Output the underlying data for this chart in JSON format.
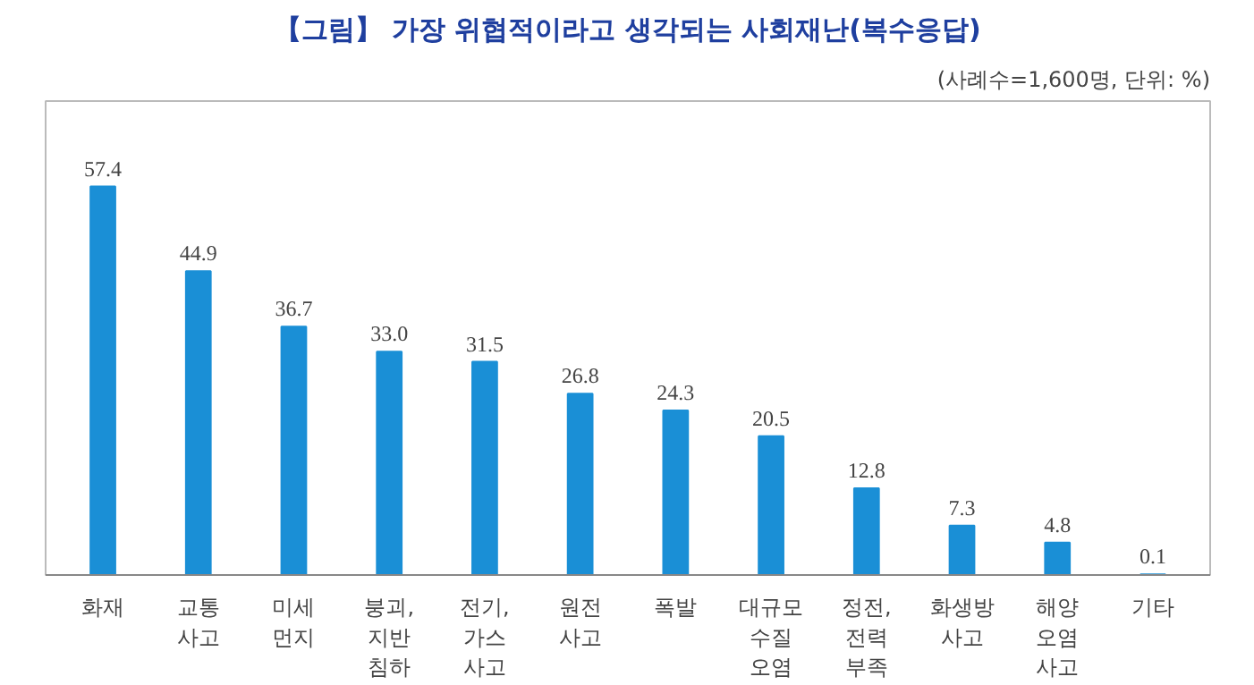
{
  "chart_data": {
    "type": "bar",
    "title": "【그림】 가장 위협적이라고 생각되는 사회재난(복수응답)",
    "subtitle": "(사례수=1,600명, 단위: %)",
    "categories": [
      "화재",
      "교통\n사고",
      "미세\n먼지",
      "붕괴,\n지반\n침하",
      "전기,\n가스\n사고",
      "원전\n사고",
      "폭발",
      "대규모\n수질\n오염",
      "정전,\n전력\n부족",
      "화생방\n사고",
      "해양\n오염\n사고",
      "기타"
    ],
    "values": [
      57.4,
      44.9,
      36.7,
      33.0,
      31.5,
      26.8,
      24.3,
      20.5,
      12.8,
      7.3,
      4.8,
      0.1
    ],
    "value_labels": [
      "57.4",
      "44.9",
      "36.7",
      "33.0",
      "31.5",
      "26.8",
      "24.3",
      "20.5",
      "12.8",
      "7.3",
      "4.8",
      "0.1"
    ],
    "color": "#1a8fd6"
  }
}
